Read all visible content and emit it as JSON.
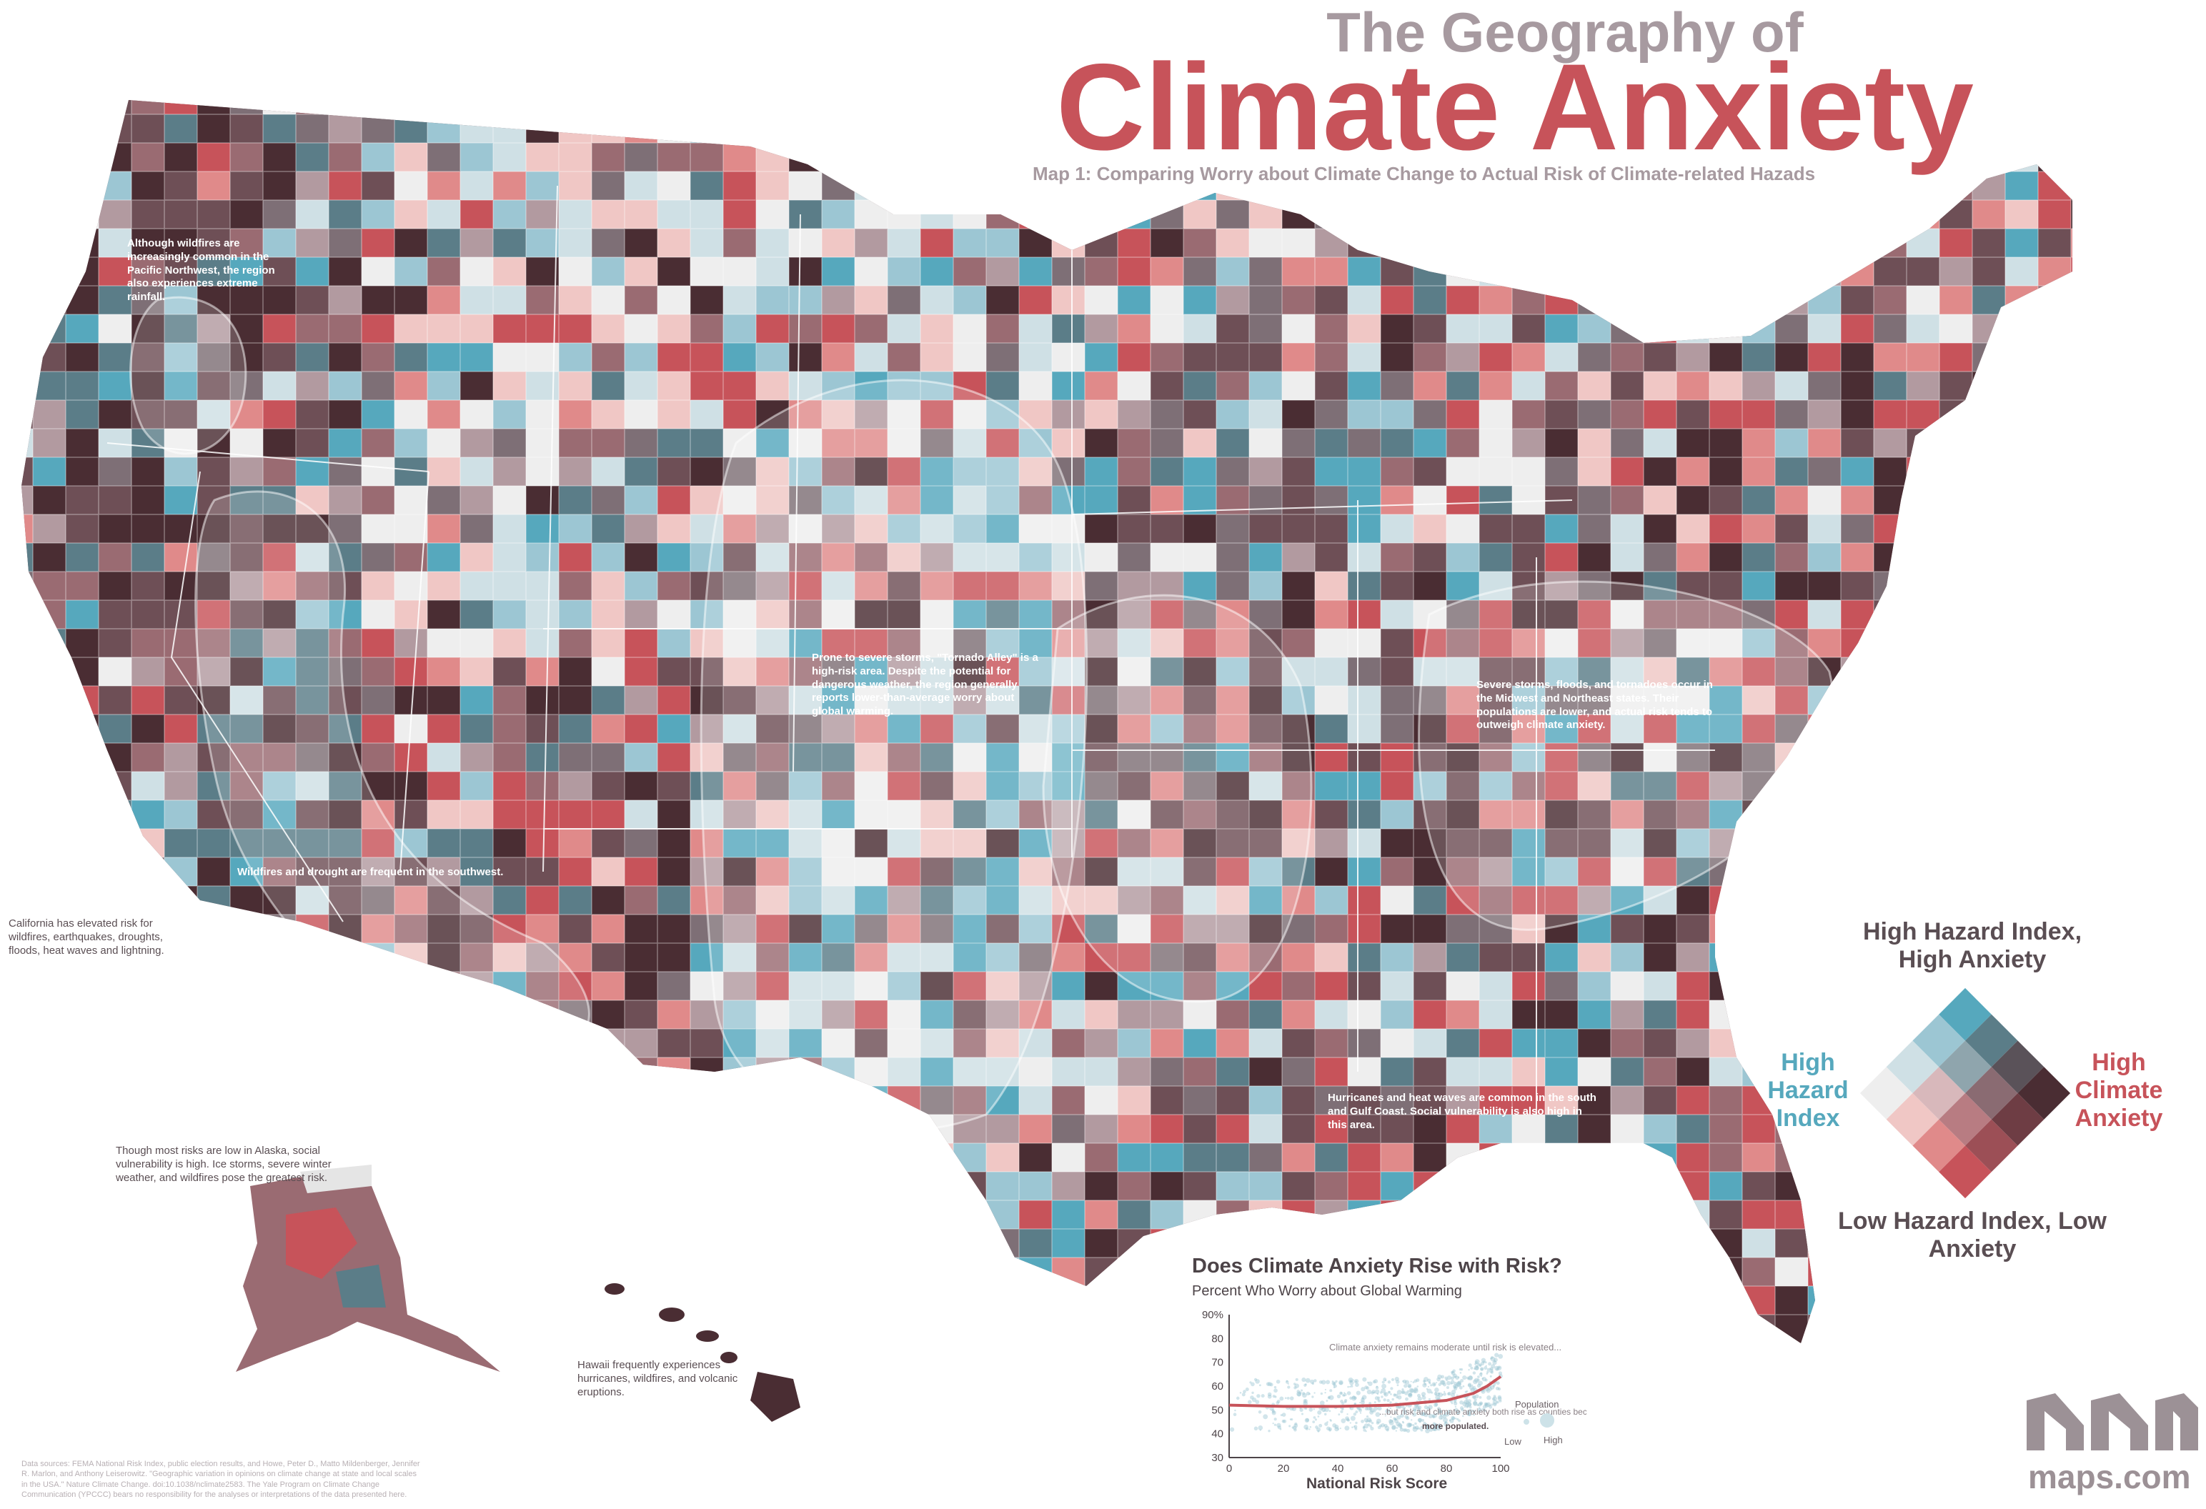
{
  "title": {
    "line1": "The Geography of",
    "line2": "Climate Anxiety",
    "subtitle": "Map 1: Comparing Worry about Climate Change to Actual Risk of Climate-related Hazads"
  },
  "annotations": {
    "pacific_nw": "Although wildfires are increasingly common in the Pacific Northwest, the region also experiences extreme rainfall.",
    "tornado_alley": "Prone to severe storms, \"Tornado Alley\" is a high-risk area. Despite the potential for dangerous weather, the region generally reports lower-than-average worry about global warming.",
    "midwest_ne": "Severe storms, floods, and tornadoes occur in the Midwest and Northeast states. Their populations are lower, and actual risk tends to outweigh climate anxiety.",
    "southwest": "Wildfires and drought are frequent in the southwest.",
    "california": "California has elevated risk for wildfires, earthquakes, droughts, floods, heat waves and lightning.",
    "gulf": "Hurricanes and heat waves are common in the south and Gulf Coast. Social vulnerability is also high in this area.",
    "alaska": "Though most risks are low in Alaska, social vulnerability is high. Ice storms, severe winter weather, and wildfires pose the greatest risk.",
    "hawaii": "Hawaii frequently experiences hurricanes, wildfires, and volcanic eruptions."
  },
  "legend": {
    "top": "High Hazard Index, High Anxiety",
    "bottom": "Low Hazard Index, Low Anxiety",
    "left": "High Hazard Index",
    "right": "High Climate Anxiety",
    "colors": {
      "high_anxiety": "#c7535a",
      "high_hazard": "#56a8bd",
      "both_high": "#4a2d33",
      "both_low": "#eeeeee"
    }
  },
  "inset_chart": {
    "title": "Does Climate Anxiety Rise with Risk?",
    "subtitle": "Percent Who Worry about Global Warming",
    "note1": "Climate anxiety remains moderate until risk is elevated...",
    "note2a": "...but risk and climate anxiety both rise as counties become",
    "note2b": "more populated.",
    "population_label": "Population",
    "pop_low": "Low",
    "pop_high": "High",
    "xlabel": "National Risk Score"
  },
  "chart_data": {
    "type": "scatter",
    "title": "Does Climate Anxiety Rise with Risk?",
    "subtitle": "Percent Who Worry about Global Warming",
    "xlabel": "National Risk Score",
    "ylabel": "",
    "xlim": [
      0,
      100
    ],
    "ylim": [
      30,
      90
    ],
    "x_ticks": [
      "0",
      "20",
      "40",
      "60",
      "80",
      "100"
    ],
    "y_ticks": [
      "30",
      "40",
      "50",
      "60",
      "70",
      "80",
      "90%"
    ],
    "trend": {
      "x": [
        0,
        20,
        40,
        60,
        80,
        90,
        95,
        100
      ],
      "y": [
        52,
        51.5,
        51.5,
        52,
        54,
        57,
        60,
        64
      ]
    }
  },
  "logo": {
    "text": "maps.com"
  },
  "sources": "Data sources: FEMA National Risk Index, public election results, and Howe, Peter D., Matto Mildenberger, Jennifer R. Marlon, and Anthony Leiserowitz. \"Geographic variation in opinions on climate change at state and local scales in the USA.\" Nature Climate Change. doi:10.1038/nclimate2583. The Yale Program on Climate Change Communication (YPCCC) bears no responsibility for the analyses or interpretations of the data presented here."
}
